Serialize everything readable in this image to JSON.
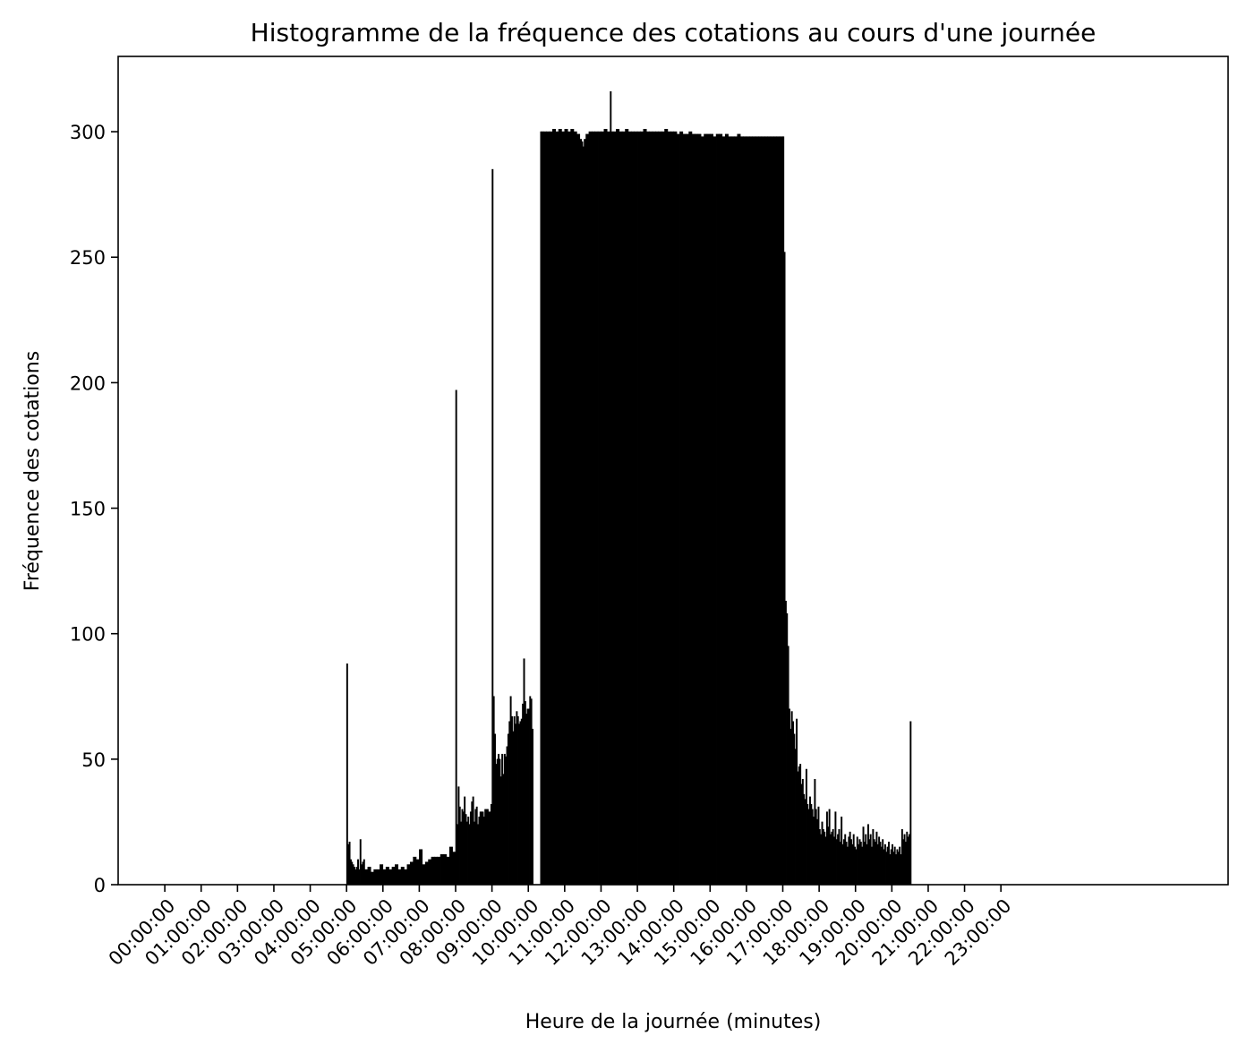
{
  "chart_data": {
    "type": "bar",
    "title": "Histogramme de la fréquence des cotations au cours d'une journée",
    "xlabel": "Heure de la journée (minutes)",
    "ylabel": "Fréquence des cotations",
    "x_unit": "minutes",
    "xlim": [
      -77,
      1755
    ],
    "ylim": [
      0,
      330
    ],
    "y_ticks": [
      0,
      50,
      100,
      150,
      200,
      250,
      300
    ],
    "x_ticks": [
      {
        "minute": 0,
        "label": "00:00:00"
      },
      {
        "minute": 60,
        "label": "01:00:00"
      },
      {
        "minute": 120,
        "label": "02:00:00"
      },
      {
        "minute": 180,
        "label": "03:00:00"
      },
      {
        "minute": 240,
        "label": "04:00:00"
      },
      {
        "minute": 300,
        "label": "05:00:00"
      },
      {
        "minute": 360,
        "label": "06:00:00"
      },
      {
        "minute": 420,
        "label": "07:00:00"
      },
      {
        "minute": 480,
        "label": "08:00:00"
      },
      {
        "minute": 540,
        "label": "09:00:00"
      },
      {
        "minute": 600,
        "label": "10:00:00"
      },
      {
        "minute": 660,
        "label": "11:00:00"
      },
      {
        "minute": 720,
        "label": "12:00:00"
      },
      {
        "minute": 780,
        "label": "13:00:00"
      },
      {
        "minute": 840,
        "label": "14:00:00"
      },
      {
        "minute": 900,
        "label": "15:00:00"
      },
      {
        "minute": 960,
        "label": "16:00:00"
      },
      {
        "minute": 1020,
        "label": "17:00:00"
      },
      {
        "minute": 1080,
        "label": "18:00:00"
      },
      {
        "minute": 1140,
        "label": "19:00:00"
      },
      {
        "minute": 1200,
        "label": "20:00:00"
      },
      {
        "minute": 1260,
        "label": "21:00:00"
      },
      {
        "minute": 1320,
        "label": "22:00:00"
      },
      {
        "minute": 1380,
        "label": "23:00:00"
      }
    ],
    "bars": [
      [
        300,
        88
      ],
      [
        302,
        16
      ],
      [
        304,
        17
      ],
      [
        306,
        10
      ],
      [
        308,
        9
      ],
      [
        310,
        8
      ],
      [
        312,
        7
      ],
      [
        314,
        6
      ],
      [
        316,
        7
      ],
      [
        318,
        10
      ],
      [
        320,
        6
      ],
      [
        322,
        18
      ],
      [
        324,
        8
      ],
      [
        326,
        9
      ],
      [
        328,
        10
      ],
      [
        330,
        6
      ],
      [
        335,
        7
      ],
      [
        340,
        5
      ],
      [
        345,
        6
      ],
      [
        350,
        6
      ],
      [
        355,
        8
      ],
      [
        360,
        6
      ],
      [
        365,
        7
      ],
      [
        370,
        6
      ],
      [
        375,
        7
      ],
      [
        380,
        8
      ],
      [
        385,
        6
      ],
      [
        390,
        7
      ],
      [
        395,
        6
      ],
      [
        400,
        8
      ],
      [
        405,
        9
      ],
      [
        410,
        11
      ],
      [
        415,
        10
      ],
      [
        420,
        14
      ],
      [
        425,
        8
      ],
      [
        430,
        9
      ],
      [
        435,
        10
      ],
      [
        440,
        11
      ],
      [
        445,
        11
      ],
      [
        450,
        11
      ],
      [
        455,
        12
      ],
      [
        460,
        12
      ],
      [
        465,
        11
      ],
      [
        470,
        15
      ],
      [
        475,
        13
      ],
      [
        480,
        197
      ],
      [
        482,
        24
      ],
      [
        484,
        39
      ],
      [
        486,
        31
      ],
      [
        488,
        25
      ],
      [
        490,
        30
      ],
      [
        492,
        29
      ],
      [
        494,
        35
      ],
      [
        496,
        28
      ],
      [
        498,
        25
      ],
      [
        500,
        27
      ],
      [
        502,
        24
      ],
      [
        504,
        29
      ],
      [
        506,
        33
      ],
      [
        508,
        35
      ],
      [
        510,
        25
      ],
      [
        512,
        30
      ],
      [
        514,
        31
      ],
      [
        516,
        24
      ],
      [
        518,
        27
      ],
      [
        520,
        29
      ],
      [
        522,
        29
      ],
      [
        524,
        29
      ],
      [
        526,
        27
      ],
      [
        528,
        30
      ],
      [
        530,
        30
      ],
      [
        532,
        30
      ],
      [
        534,
        29
      ],
      [
        536,
        29
      ],
      [
        538,
        32
      ],
      [
        540,
        285
      ],
      [
        542,
        75
      ],
      [
        544,
        60
      ],
      [
        546,
        48
      ],
      [
        548,
        50
      ],
      [
        550,
        52
      ],
      [
        552,
        50
      ],
      [
        554,
        43
      ],
      [
        556,
        52
      ],
      [
        558,
        44
      ],
      [
        560,
        52
      ],
      [
        562,
        51
      ],
      [
        564,
        55
      ],
      [
        566,
        60
      ],
      [
        568,
        65
      ],
      [
        570,
        75
      ],
      [
        572,
        67
      ],
      [
        574,
        61
      ],
      [
        576,
        67
      ],
      [
        578,
        64
      ],
      [
        580,
        69
      ],
      [
        582,
        67
      ],
      [
        584,
        64
      ],
      [
        586,
        65
      ],
      [
        588,
        66
      ],
      [
        590,
        72
      ],
      [
        592,
        90
      ],
      [
        594,
        73
      ],
      [
        596,
        68
      ],
      [
        598,
        70
      ],
      [
        600,
        70
      ],
      [
        602,
        75
      ],
      [
        604,
        74
      ],
      [
        606,
        62
      ],
      [
        608,
        0
      ],
      [
        618,
        0
      ],
      [
        620,
        300
      ],
      [
        622,
        300
      ],
      [
        625,
        300
      ],
      [
        630,
        300
      ],
      [
        635,
        300
      ],
      [
        640,
        301
      ],
      [
        645,
        300
      ],
      [
        650,
        301
      ],
      [
        655,
        300
      ],
      [
        660,
        301
      ],
      [
        665,
        300
      ],
      [
        670,
        301
      ],
      [
        675,
        300
      ],
      [
        680,
        299
      ],
      [
        685,
        297
      ],
      [
        688,
        296
      ],
      [
        690,
        294
      ],
      [
        692,
        297
      ],
      [
        695,
        299
      ],
      [
        700,
        300
      ],
      [
        705,
        300
      ],
      [
        710,
        300
      ],
      [
        715,
        300
      ],
      [
        720,
        300
      ],
      [
        725,
        301
      ],
      [
        730,
        300
      ],
      [
        735,
        316
      ],
      [
        737,
        300
      ],
      [
        740,
        300
      ],
      [
        745,
        301
      ],
      [
        750,
        300
      ],
      [
        755,
        300
      ],
      [
        760,
        301
      ],
      [
        765,
        300
      ],
      [
        770,
        300
      ],
      [
        775,
        300
      ],
      [
        780,
        300
      ],
      [
        785,
        300
      ],
      [
        790,
        301
      ],
      [
        795,
        300
      ],
      [
        800,
        300
      ],
      [
        805,
        300
      ],
      [
        810,
        300
      ],
      [
        815,
        300
      ],
      [
        820,
        300
      ],
      [
        825,
        301
      ],
      [
        830,
        300
      ],
      [
        835,
        300
      ],
      [
        840,
        300
      ],
      [
        845,
        299
      ],
      [
        850,
        300
      ],
      [
        855,
        299
      ],
      [
        860,
        299
      ],
      [
        865,
        300
      ],
      [
        870,
        299
      ],
      [
        875,
        299
      ],
      [
        880,
        299
      ],
      [
        885,
        298
      ],
      [
        890,
        299
      ],
      [
        895,
        299
      ],
      [
        900,
        299
      ],
      [
        905,
        298
      ],
      [
        910,
        299
      ],
      [
        915,
        299
      ],
      [
        920,
        298
      ],
      [
        925,
        299
      ],
      [
        930,
        298
      ],
      [
        935,
        298
      ],
      [
        940,
        298
      ],
      [
        945,
        299
      ],
      [
        950,
        298
      ],
      [
        955,
        298
      ],
      [
        960,
        298
      ],
      [
        965,
        298
      ],
      [
        970,
        298
      ],
      [
        975,
        298
      ],
      [
        980,
        298
      ],
      [
        985,
        298
      ],
      [
        990,
        298
      ],
      [
        995,
        298
      ],
      [
        1000,
        298
      ],
      [
        1005,
        298
      ],
      [
        1010,
        298
      ],
      [
        1015,
        298
      ],
      [
        1020,
        298
      ],
      [
        1022,
        252
      ],
      [
        1024,
        113
      ],
      [
        1026,
        108
      ],
      [
        1028,
        95
      ],
      [
        1030,
        70
      ],
      [
        1032,
        62
      ],
      [
        1034,
        69
      ],
      [
        1036,
        65
      ],
      [
        1038,
        60
      ],
      [
        1040,
        54
      ],
      [
        1042,
        66
      ],
      [
        1044,
        45
      ],
      [
        1046,
        47
      ],
      [
        1048,
        48
      ],
      [
        1050,
        40
      ],
      [
        1052,
        42
      ],
      [
        1054,
        36
      ],
      [
        1056,
        34
      ],
      [
        1058,
        46
      ],
      [
        1060,
        32
      ],
      [
        1062,
        30
      ],
      [
        1064,
        35
      ],
      [
        1066,
        32
      ],
      [
        1068,
        30
      ],
      [
        1070,
        27
      ],
      [
        1072,
        42
      ],
      [
        1074,
        30
      ],
      [
        1076,
        26
      ],
      [
        1078,
        31
      ],
      [
        1080,
        22
      ],
      [
        1082,
        20
      ],
      [
        1084,
        25
      ],
      [
        1086,
        22
      ],
      [
        1088,
        21
      ],
      [
        1090,
        19
      ],
      [
        1092,
        29
      ],
      [
        1094,
        23
      ],
      [
        1096,
        30
      ],
      [
        1098,
        20
      ],
      [
        1100,
        21
      ],
      [
        1102,
        22
      ],
      [
        1104,
        19
      ],
      [
        1106,
        29
      ],
      [
        1108,
        18
      ],
      [
        1110,
        20
      ],
      [
        1112,
        22
      ],
      [
        1114,
        17
      ],
      [
        1116,
        27
      ],
      [
        1118,
        16
      ],
      [
        1120,
        18
      ],
      [
        1122,
        20
      ],
      [
        1124,
        17
      ],
      [
        1126,
        15
      ],
      [
        1128,
        19
      ],
      [
        1130,
        21
      ],
      [
        1132,
        18
      ],
      [
        1134,
        16
      ],
      [
        1136,
        20
      ],
      [
        1138,
        15
      ],
      [
        1140,
        14
      ],
      [
        1142,
        19
      ],
      [
        1144,
        16
      ],
      [
        1146,
        18
      ],
      [
        1148,
        17
      ],
      [
        1150,
        15
      ],
      [
        1152,
        23
      ],
      [
        1154,
        17
      ],
      [
        1156,
        20
      ],
      [
        1158,
        16
      ],
      [
        1160,
        24
      ],
      [
        1162,
        18
      ],
      [
        1164,
        20
      ],
      [
        1166,
        15
      ],
      [
        1168,
        22
      ],
      [
        1170,
        18
      ],
      [
        1172,
        17
      ],
      [
        1174,
        21
      ],
      [
        1176,
        16
      ],
      [
        1178,
        19
      ],
      [
        1180,
        17
      ],
      [
        1182,
        15
      ],
      [
        1184,
        18
      ],
      [
        1186,
        14
      ],
      [
        1188,
        16
      ],
      [
        1190,
        13
      ],
      [
        1192,
        15
      ],
      [
        1194,
        17
      ],
      [
        1196,
        12
      ],
      [
        1198,
        14
      ],
      [
        1200,
        16
      ],
      [
        1202,
        13
      ],
      [
        1204,
        15
      ],
      [
        1206,
        12
      ],
      [
        1208,
        14
      ],
      [
        1210,
        13
      ],
      [
        1212,
        15
      ],
      [
        1214,
        12
      ],
      [
        1216,
        22
      ],
      [
        1218,
        18
      ],
      [
        1220,
        20
      ],
      [
        1222,
        17
      ],
      [
        1224,
        21
      ],
      [
        1226,
        19
      ],
      [
        1228,
        20
      ],
      [
        1230,
        65
      ]
    ]
  }
}
